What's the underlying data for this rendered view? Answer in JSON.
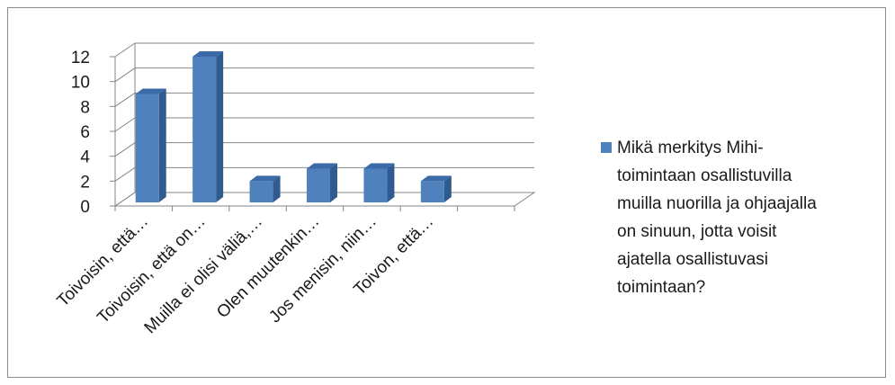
{
  "chart_data": {
    "type": "bar",
    "categories": [
      "Toivoisin, että…",
      "Toivoisin, että on…",
      "Muilla ei olisi väliä,…",
      "Olen muutenkin…",
      "Jos menisin, niin…",
      "Toivon, että…",
      ""
    ],
    "series": [
      {
        "name": "Mikä merkitys Mihi-toimintaan osallistuvilla muilla nuorilla ja ohjaajalla on sinuun, jotta voisit ajatella osallistuvasi toimintaan?",
        "values": [
          9,
          12,
          2,
          3,
          3,
          2,
          null
        ]
      }
    ],
    "yticks": [
      "0",
      "2",
      "4",
      "6",
      "8",
      "10",
      "12"
    ],
    "ylim": [
      0,
      12
    ],
    "grid": true,
    "legend_position": "right",
    "three_d": true,
    "colors": {
      "bar_front": "#4f81bd",
      "bar_side": "#2f5b8e",
      "bar_top": "#3b6aa6",
      "grid": "#868686"
    }
  },
  "legend": {
    "lines": [
      "Mikä merkitys Mihi-",
      "toimintaan osallistuvilla",
      "muilla nuorilla ja ohjaajalla",
      "on sinuun, jotta voisit",
      "ajatella osallistuvasi",
      "toimintaan?"
    ]
  }
}
